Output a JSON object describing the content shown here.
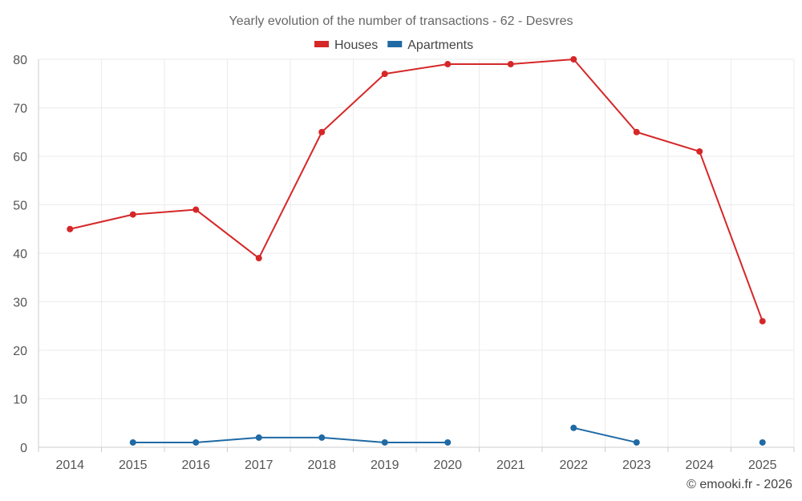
{
  "chart_data": {
    "type": "line",
    "title": "Yearly evolution of the number of transactions - 62 - Desvres",
    "categories": [
      "2014",
      "2015",
      "2016",
      "2017",
      "2018",
      "2019",
      "2020",
      "2021",
      "2022",
      "2023",
      "2024",
      "2025"
    ],
    "series": [
      {
        "name": "Houses",
        "color": "#d62728",
        "values": [
          45,
          48,
          49,
          39,
          65,
          77,
          79,
          79,
          80,
          65,
          61,
          26
        ]
      },
      {
        "name": "Apartments",
        "color": "#1f6aa5",
        "values": [
          null,
          1,
          1,
          2,
          2,
          1,
          1,
          null,
          4,
          1,
          null,
          1
        ]
      }
    ],
    "ylim": [
      0,
      80
    ],
    "yticks": [
      0,
      10,
      20,
      30,
      40,
      50,
      60,
      70,
      80
    ],
    "grid": true,
    "legend": "top-center",
    "xlabel": "",
    "ylabel": ""
  },
  "credit": "© emooki.fr - 2026"
}
